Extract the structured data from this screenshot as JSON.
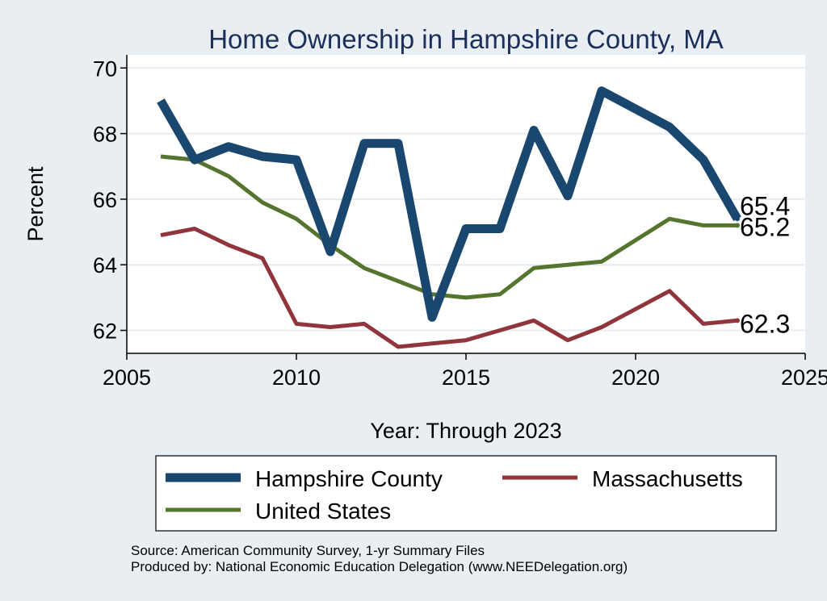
{
  "chart_data": {
    "type": "line",
    "title": "Home Ownership in Hampshire County, MA",
    "xlabel": "Year: Through 2023",
    "ylabel": "Percent",
    "xlim": [
      2005,
      2025
    ],
    "ylim": [
      61.3,
      70.4
    ],
    "xticks": [
      2005,
      2010,
      2015,
      2020,
      2025
    ],
    "yticks": [
      62,
      64,
      66,
      68,
      70
    ],
    "grid": true,
    "legend_position": "bottom",
    "x": [
      2006,
      2007,
      2008,
      2009,
      2010,
      2011,
      2012,
      2013,
      2014,
      2015,
      2016,
      2017,
      2018,
      2019,
      2021,
      2022,
      2023
    ],
    "series": [
      {
        "name": "Hampshire County",
        "color": "#1a476f",
        "values": [
          69.0,
          67.2,
          67.6,
          67.3,
          67.2,
          64.4,
          67.7,
          67.7,
          62.4,
          65.1,
          65.1,
          68.1,
          66.1,
          69.3,
          68.2,
          67.2,
          65.4
        ],
        "end_label": "65.4"
      },
      {
        "name": "Massachusetts",
        "color": "#90353b",
        "values": [
          64.9,
          65.1,
          64.6,
          64.2,
          62.2,
          62.1,
          62.2,
          61.5,
          61.6,
          61.7,
          62.0,
          62.3,
          61.7,
          62.1,
          63.2,
          62.2,
          62.3
        ],
        "end_label": "62.3"
      },
      {
        "name": "United States",
        "color": "#55752f",
        "values": [
          67.3,
          67.2,
          66.7,
          65.9,
          65.4,
          64.6,
          63.9,
          63.5,
          63.1,
          63.0,
          63.1,
          63.9,
          64.0,
          64.1,
          65.4,
          65.2,
          65.2
        ],
        "end_label": "65.2"
      }
    ],
    "legend": [
      "Hampshire County",
      "Massachusetts",
      "United States"
    ],
    "notes": [
      "Source: American Community Survey, 1-yr Summary Files",
      "Produced by: National Economic Education Delegation (www.NEEDelegation.org)"
    ]
  },
  "colors": {
    "background": "#e8eef2",
    "plot_background": "#ffffff",
    "title": "#1c2e5a",
    "grid": "#e6ecef"
  }
}
